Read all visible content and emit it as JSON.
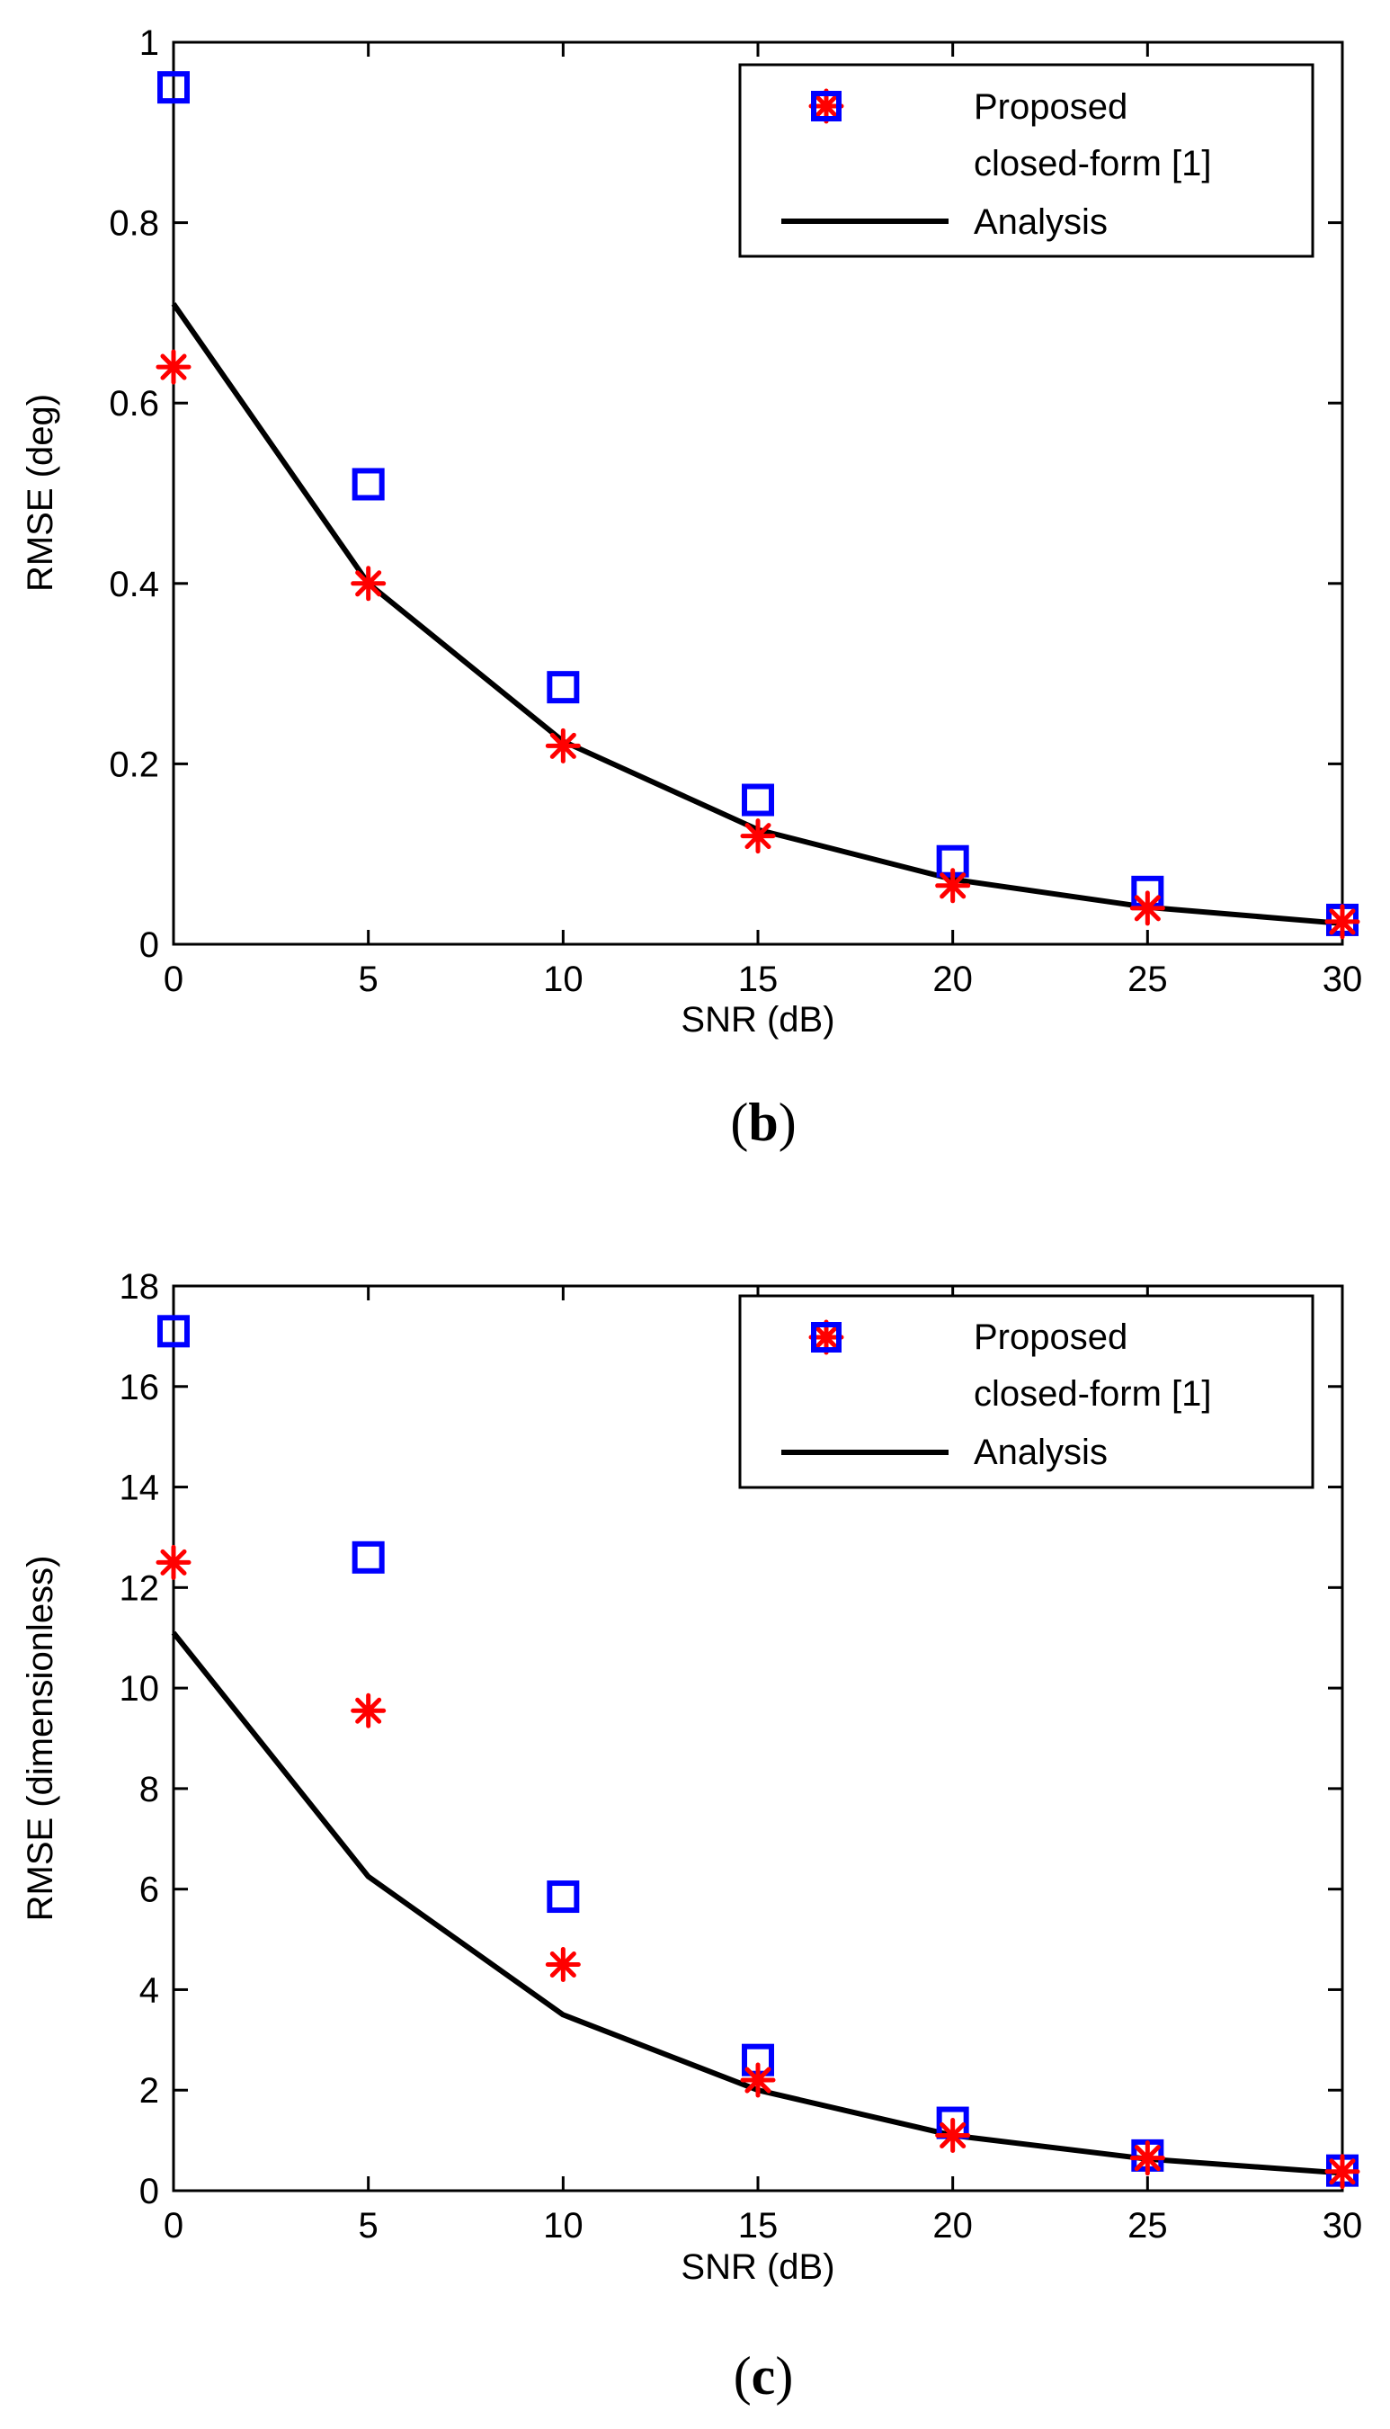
{
  "chart_data": [
    {
      "type": "scatter",
      "panel_label": "b",
      "title": "",
      "xlabel": "SNR (dB)",
      "ylabel": "RMSE (deg)",
      "xlim": [
        0,
        30
      ],
      "ylim": [
        0,
        1
      ],
      "xticks": [
        "0",
        "5",
        "10",
        "15",
        "20",
        "25",
        "30"
      ],
      "yticks": [
        "0",
        "0.2",
        "0.4",
        "0.6",
        "0.8",
        "1"
      ],
      "grid": false,
      "legend_position": "top-right",
      "x": [
        0,
        5,
        10,
        15,
        20,
        25,
        30
      ],
      "series": [
        {
          "name": "Proposed",
          "marker": "asterisk",
          "color": "#ff0000",
          "values": [
            0.64,
            0.4,
            0.22,
            0.12,
            0.065,
            0.04,
            0.025
          ]
        },
        {
          "name": "closed-form [1]",
          "marker": "square",
          "color": "#0000ff",
          "values": [
            0.95,
            0.51,
            0.285,
            0.16,
            0.092,
            0.058,
            0.027
          ]
        },
        {
          "name": "Analysis",
          "marker": "line",
          "color": "#000000",
          "values": [
            0.71,
            0.4,
            0.225,
            0.127,
            0.072,
            0.041,
            0.023
          ]
        }
      ]
    },
    {
      "type": "scatter",
      "panel_label": "c",
      "title": "",
      "xlabel": "SNR (dB)",
      "ylabel": "RMSE (dimensionless)",
      "xlim": [
        0,
        30
      ],
      "ylim": [
        0,
        18
      ],
      "xticks": [
        "0",
        "5",
        "10",
        "15",
        "20",
        "25",
        "30"
      ],
      "yticks": [
        "0",
        "2",
        "4",
        "6",
        "8",
        "10",
        "12",
        "14",
        "16",
        "18"
      ],
      "grid": false,
      "legend_position": "top-right",
      "x": [
        0,
        5,
        10,
        15,
        20,
        25,
        30
      ],
      "series": [
        {
          "name": "Proposed",
          "marker": "asterisk",
          "color": "#ff0000",
          "values": [
            12.5,
            9.55,
            4.5,
            2.2,
            1.1,
            0.65,
            0.38
          ]
        },
        {
          "name": "closed-form [1]",
          "marker": "square",
          "color": "#0000ff",
          "values": [
            17.1,
            12.6,
            5.85,
            2.6,
            1.35,
            0.7,
            0.4
          ]
        },
        {
          "name": "Analysis",
          "marker": "line",
          "color": "#000000",
          "values": [
            11.1,
            6.25,
            3.5,
            2.0,
            1.1,
            0.63,
            0.35
          ]
        }
      ]
    }
  ]
}
